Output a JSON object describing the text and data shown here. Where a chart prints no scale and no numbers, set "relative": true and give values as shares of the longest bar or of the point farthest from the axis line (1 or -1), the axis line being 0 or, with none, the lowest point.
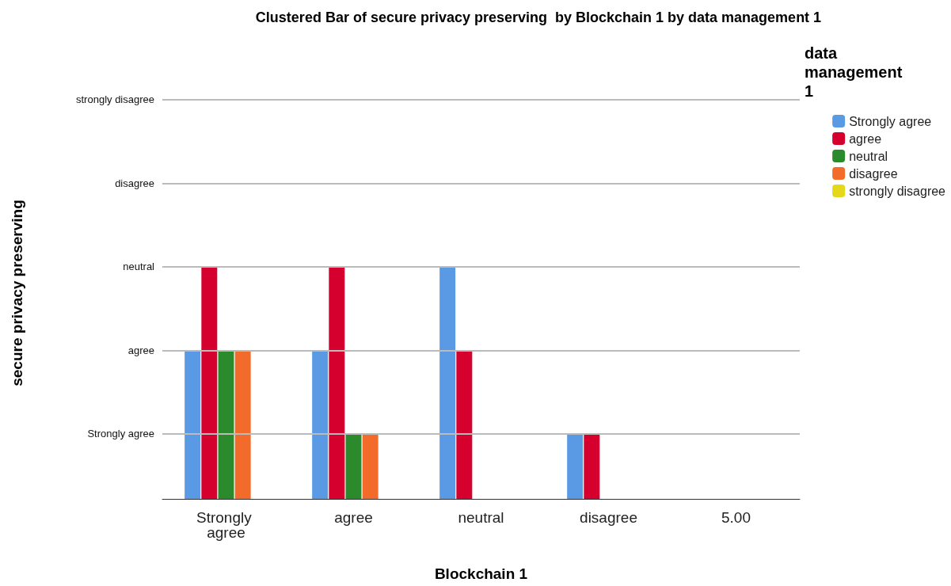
{
  "chart_data": {
    "type": "bar",
    "title": "Clustered Bar of secure privacy preserving  by Blockchain 1 by data management 1",
    "xlabel": "Blockchain 1",
    "legend_title": "data management 1",
    "relative": true,
    "categories": [
      "Strongly agree",
      "agree",
      "neutral",
      "disagree",
      "5.00"
    ],
    "series": [
      {
        "name": "Strongly agree",
        "color": "#5a9ae5",
        "values": [
          0.64,
          0.64,
          1,
          0.28,
          null
        ]
      },
      {
        "name": "agree",
        "color": "#d6002f",
        "values": [
          1,
          1,
          0.64,
          0.28,
          null
        ]
      },
      {
        "name": "neutral",
        "color": "#2b8a2b",
        "values": [
          0.64,
          0.28,
          null,
          null,
          null
        ]
      },
      {
        "name": "disagree",
        "color": "#f26b2a",
        "values": [
          0.64,
          0.28,
          null,
          null,
          null
        ]
      },
      {
        "name": "strongly disagree",
        "color": "#e3d81a",
        "values": [
          null,
          null,
          null,
          null,
          null
        ]
      }
    ],
    "annotations": [
      "secure privacy preserving"
    ],
    "ref_lines": [
      {
        "axis": "y",
        "value": 0.28,
        "label": "Strongly agree",
        "color": "#bbbbbb"
      },
      {
        "axis": "y",
        "value": 0.64,
        "label": "agree",
        "color": "#bbbbbb"
      },
      {
        "axis": "y",
        "value": 1,
        "label": "neutral",
        "color": "#bbbbbb"
      },
      {
        "axis": "y",
        "value": 1.36,
        "label": "disagree",
        "color": "#bbbbbb"
      },
      {
        "axis": "y",
        "value": 1.72,
        "label": "strongly disagree",
        "color": "#bbbbbb"
      }
    ],
    "legend": "top right"
  }
}
